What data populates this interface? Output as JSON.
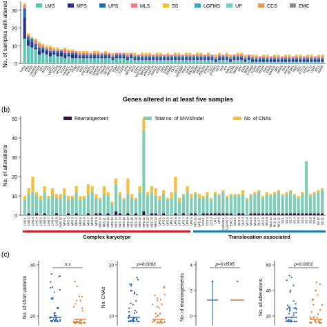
{
  "panel_a": {
    "ylabel": "No. of samples with altered",
    "xlabel": "Genes altered in at least five samples",
    "legend": [
      {
        "label": "LMS",
        "color": "#5bc4b5"
      },
      {
        "label": "MFS",
        "color": "#2d2e84"
      },
      {
        "label": "UPS",
        "color": "#1e6fb5"
      },
      {
        "label": "MLS",
        "color": "#f07a7a"
      },
      {
        "label": "SS",
        "color": "#f1c232"
      },
      {
        "label": "LGFMS",
        "color": "#3aa3c9"
      },
      {
        "label": "UP",
        "color": "#6fd0c2"
      },
      {
        "label": "CCS",
        "color": "#e8974c"
      },
      {
        "label": "EMC",
        "color": "#8a8a8a"
      }
    ],
    "ticks": [
      "0",
      "10",
      "20",
      "30"
    ]
  },
  "panel_b": {
    "label": "(b)",
    "ylabel": "No. of alterations",
    "legend": [
      {
        "label": "Rearrangement",
        "color": "#3b0f4e"
      },
      {
        "label": "Total no. of SNVs/Indel",
        "color": "#7fcdb8"
      },
      {
        "label": "No. of CNAs",
        "color": "#f5be3c"
      }
    ],
    "ticks": [
      "0",
      "10",
      "20",
      "30",
      "40",
      "50"
    ],
    "group_left": "Complex karyotype",
    "group_right": "Translocation associated",
    "group_left_color": "#d32027",
    "group_right_color": "#1d78b4"
  },
  "panel_c": {
    "label": "(c)",
    "plots": [
      {
        "ylabel": "No. of short variants",
        "pvalue": "n.s",
        "ticks": [
          "20",
          "40"
        ]
      },
      {
        "ylabel": "No. CNAs",
        "pvalue": "p=0.0093",
        "ticks": [
          "10",
          "20"
        ]
      },
      {
        "ylabel": "No. of rearrangements",
        "pvalue": "p=0.0595",
        "ticks": [
          "0",
          "2",
          "4"
        ]
      },
      {
        "ylabel": "No. all alterations",
        "pvalue": "p<0.0001",
        "ticks": [
          "20",
          "40",
          "60"
        ]
      }
    ]
  },
  "chart_data": [
    {
      "type": "bar",
      "title": "",
      "ylabel": "No. of samples with altered",
      "xlabel": "Genes altered in at least five samples",
      "ylim": [
        0,
        35
      ],
      "stacked": true,
      "categories": [
        "TP53",
        "RB1",
        "TP53",
        "FANCA",
        "CDKN2A",
        "NF1",
        "ATRX",
        "CIC",
        "MED12",
        "PTEN",
        "MTOR",
        "FLCN",
        "FANCC",
        "PIK3CA",
        "TRIM",
        "CDK",
        "MYC",
        "KMT2D",
        "MED1",
        "BCOR",
        "MAP2K",
        "NOTCH",
        "FBXW",
        "SETD2",
        "ARID1A",
        "KDM",
        "TERT",
        "EGFR",
        "ATM",
        "BRCA2",
        "IRS2",
        "ESR1",
        "NOTCH2",
        "BRCA1",
        "ARID1B",
        "KMT2A",
        "PRKDC",
        "CDH1",
        "JAK2",
        "SPEN",
        "ERBB4",
        "FAT1",
        "MLL3",
        "CREBBP",
        "POLE",
        "GATA",
        "RAD50",
        "MSH6",
        "FBXO",
        "PDGFR",
        "EPHA",
        "TSC2",
        "PTPRD",
        "RET",
        "ALK",
        "KIT",
        "ROS1",
        "NTRK",
        "SMAD",
        "APC",
        "AXIN",
        "BRAF",
        "CTNNB",
        "FGFR",
        "GRIN",
        "HRAS",
        "IDH1",
        "KRAS",
        "MAP3K",
        "MPL",
        "NRAS",
        "PAX",
        "PIK3R",
        "SF3B1",
        "SMO",
        "SRC",
        "STK11",
        "SUFU",
        "TET2",
        "U2AF",
        "WT1",
        "SDHB"
      ],
      "series": [
        {
          "name": "LMS",
          "values": [
            14,
            10,
            9,
            8,
            5,
            6,
            5,
            4,
            5,
            4,
            4,
            3,
            4,
            3,
            3,
            3,
            3,
            3,
            3,
            3,
            3,
            3,
            3,
            3,
            2,
            3,
            3,
            3,
            2,
            3,
            2,
            2,
            2,
            2,
            2,
            2,
            2,
            2,
            2,
            2,
            2,
            2,
            2,
            2,
            2,
            2,
            2,
            2,
            2,
            2,
            2,
            2,
            1,
            2,
            2,
            2,
            1,
            2,
            2,
            2,
            1,
            2,
            1,
            1,
            1,
            1,
            1,
            1,
            1,
            1,
            1,
            1,
            1,
            1,
            1,
            1,
            1,
            1,
            1,
            1,
            1,
            1
          ]
        },
        {
          "name": "MFS",
          "values": [
            12,
            3,
            3,
            1,
            2,
            2,
            2,
            2,
            1,
            2,
            2,
            2,
            1,
            2,
            2,
            1,
            1,
            1,
            1,
            1,
            1,
            1,
            1,
            1,
            1,
            1,
            1,
            1,
            1,
            1,
            1,
            1,
            1,
            1,
            1,
            1,
            1,
            1,
            1,
            1,
            1,
            1,
            1,
            1,
            1,
            1,
            1,
            1,
            1,
            1,
            1,
            1,
            1,
            1,
            1,
            1,
            1,
            1,
            1,
            1,
            1,
            1,
            1,
            1,
            1,
            1,
            1,
            1,
            1,
            1,
            1,
            1,
            1,
            1,
            1,
            1,
            1,
            1,
            1,
            1,
            1,
            1
          ]
        },
        {
          "name": "UPS",
          "values": [
            5,
            2,
            2,
            2,
            2,
            1,
            1,
            1,
            1,
            1,
            1,
            1,
            1,
            1,
            1,
            1,
            1,
            1,
            1,
            1,
            1,
            1,
            1,
            1,
            1,
            1,
            1,
            1,
            1,
            1,
            1,
            1,
            1,
            1,
            1,
            1,
            1,
            1,
            1,
            1,
            1,
            1,
            1,
            1,
            1,
            1,
            1,
            1,
            1,
            1,
            1,
            1,
            1,
            1,
            1,
            1,
            1,
            1,
            1,
            1,
            1,
            1,
            1,
            1,
            1,
            1,
            1,
            1,
            1,
            1,
            1,
            1,
            1,
            1,
            1,
            1,
            1,
            1,
            1,
            1,
            1,
            1
          ]
        },
        {
          "name": "MLS",
          "values": [
            2,
            1,
            0,
            2,
            2,
            1,
            1,
            2,
            1,
            1,
            1,
            2,
            1,
            1,
            1,
            1,
            1,
            1,
            1,
            1,
            1,
            1,
            1,
            1,
            1,
            1,
            1,
            1,
            1,
            1,
            1,
            1,
            1,
            1,
            1,
            1,
            1,
            1,
            1,
            1,
            1,
            1,
            1,
            1,
            1,
            1,
            1,
            1,
            1,
            1,
            1,
            1,
            1,
            1,
            1,
            1,
            1,
            1,
            1,
            1,
            1,
            1,
            1,
            1,
            1,
            1,
            1,
            1,
            1,
            1,
            1,
            1,
            1,
            1,
            1,
            1,
            1,
            1,
            1,
            1,
            1,
            1
          ]
        },
        {
          "name": "SS",
          "values": [
            1,
            1,
            1,
            1,
            1,
            1,
            1,
            1,
            1,
            1,
            0,
            1,
            1,
            1,
            0,
            1,
            1,
            1,
            0,
            1,
            1,
            0,
            1,
            0,
            1,
            0,
            0,
            0,
            1,
            0,
            1,
            0,
            1,
            1,
            1,
            0,
            1,
            1,
            0,
            1,
            0,
            1,
            1,
            0,
            1,
            1,
            0,
            1,
            1,
            0,
            1,
            0,
            1,
            1,
            0,
            1,
            1,
            0,
            1,
            1,
            1,
            0,
            1,
            1,
            0,
            1,
            1,
            0,
            1,
            1,
            0,
            1,
            1,
            0,
            1,
            1,
            0,
            1,
            1,
            0,
            1,
            1
          ]
        }
      ]
    },
    {
      "type": "bar",
      "title": "",
      "ylabel": "No. of alterations",
      "ylim": [
        0,
        50
      ],
      "stacked": true,
      "categories": [
        "LMS 1",
        "LMS 2",
        "LMS 3",
        "LMS 4",
        "LMS 5",
        "LMS 6",
        "LMS 7",
        "LMS 8",
        "LMS 9",
        "LMS 10",
        "MFS 1",
        "MFS 2",
        "MFS 3",
        "MFS 4",
        "MFS 5",
        "MFS 6",
        "MFS 7",
        "MFS 8",
        "MFS 9",
        "MFS 10",
        "MFS 11",
        "MFS 12",
        "MFS 13",
        "MFS 14",
        "MFS 15",
        "MFS 16",
        "MFS 17",
        "MFS 18",
        "MFS 19",
        "MFS 20",
        "MFS 21",
        "MFS 22",
        "MFS 23",
        "MFS 24",
        "UPS 1",
        "UPS 2",
        "UPS 3",
        "UPS 4",
        "UPS 5",
        "UPS 6",
        "UPS 7",
        "UPS 8",
        "UPS 9",
        "UPS 10",
        "UPS 11",
        "CCS 1",
        "CCS 2",
        "CCS 3",
        "UP 1",
        "UP 2",
        "LGFMS 1",
        "LGFMS 2",
        "EMC 1",
        "MLS 1",
        "MLS 2",
        "MLS 3",
        "MLS 4",
        "MLS 5",
        "MLS 6",
        "MLS 7",
        "MLS 8",
        "MLS 9",
        "MLS 10",
        "MLS 11",
        "MLS 12",
        "SS 1",
        "SS 2",
        "SS 3",
        "SS 4",
        "SS 5",
        "SS 6",
        "SS 7",
        "SS 8",
        "SS 9",
        "SS 10",
        "SS 11"
      ],
      "series": [
        {
          "name": "Rearrangement",
          "values": [
            0,
            1,
            0,
            1,
            0,
            1,
            0,
            0,
            1,
            0,
            0,
            1,
            0,
            1,
            0,
            0,
            1,
            0,
            1,
            1,
            0,
            1,
            0,
            2,
            1,
            0,
            1,
            0,
            1,
            0,
            2,
            0,
            1,
            1,
            0,
            1,
            0,
            0,
            1,
            0,
            1,
            0,
            1,
            1,
            0,
            1,
            1,
            1,
            1,
            1,
            1,
            1,
            1,
            0,
            1,
            1,
            0,
            1,
            1,
            1,
            1,
            1,
            1,
            1,
            1,
            1,
            1,
            1,
            1,
            1,
            1,
            1,
            1,
            1,
            1,
            1
          ]
        },
        {
          "name": "Total no. of SNVs/Indel",
          "values": [
            8,
            10,
            12,
            9,
            8,
            11,
            9,
            10,
            8,
            9,
            11,
            7,
            9,
            11,
            8,
            9,
            10,
            12,
            8,
            7,
            11,
            9,
            6,
            14,
            9,
            8,
            10,
            9,
            7,
            12,
            42,
            10,
            11,
            9,
            8,
            10,
            8,
            9,
            11,
            7,
            9,
            12,
            8,
            10,
            9,
            8,
            9,
            7,
            10,
            9,
            11,
            8,
            9,
            10,
            9,
            10,
            8,
            9,
            10,
            11,
            8,
            10,
            9,
            10,
            11,
            9,
            10,
            11,
            9,
            8,
            10,
            27,
            9,
            10,
            11,
            12
          ]
        },
        {
          "name": "No. of CNAs",
          "values": [
            2,
            3,
            8,
            2,
            2,
            3,
            1,
            4,
            2,
            2,
            3,
            2,
            1,
            3,
            2,
            1,
            5,
            3,
            2,
            1,
            4,
            2,
            1,
            3,
            2,
            1,
            8,
            2,
            1,
            3,
            6,
            2,
            3,
            4,
            2,
            2,
            1,
            3,
            8,
            2,
            1,
            3,
            2,
            1,
            2,
            1,
            2,
            1,
            1,
            1,
            1,
            1,
            1,
            1,
            1,
            2,
            1,
            1,
            1,
            1,
            1,
            1,
            1,
            1,
            1,
            1,
            1,
            1,
            1,
            1,
            1,
            0,
            1,
            1,
            1,
            1
          ]
        }
      ]
    }
  ]
}
